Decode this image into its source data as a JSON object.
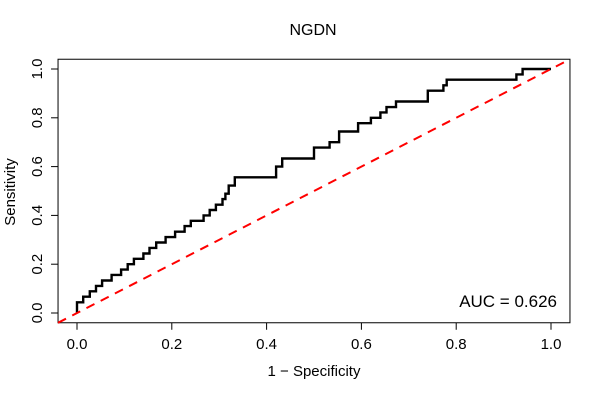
{
  "figure": {
    "background": "#ffffff",
    "box_color": "#000000"
  },
  "chart_data": {
    "type": "line",
    "subtype": "roc-step-curve",
    "title": "NGDN",
    "xlabel": "1 − Specificity",
    "ylabel": "Sensitivity",
    "xlim": [
      0,
      1
    ],
    "ylim": [
      0,
      1
    ],
    "x_ticks": [
      0.0,
      0.2,
      0.4,
      0.6,
      0.8,
      1.0
    ],
    "y_ticks": [
      0.0,
      0.2,
      0.4,
      0.6,
      0.8,
      1.0
    ],
    "grid": false,
    "legend": "none",
    "annotation": "AUC = 0.626",
    "auc": 0.626,
    "series": [
      {
        "name": "roc-curve",
        "color": "#000000",
        "style": "solid",
        "width": 2.4,
        "step": true,
        "points": [
          [
            0.0,
            0.0
          ],
          [
            0.0,
            0.044
          ],
          [
            0.013,
            0.044
          ],
          [
            0.013,
            0.067
          ],
          [
            0.027,
            0.067
          ],
          [
            0.027,
            0.089
          ],
          [
            0.04,
            0.089
          ],
          [
            0.04,
            0.111
          ],
          [
            0.053,
            0.111
          ],
          [
            0.053,
            0.133
          ],
          [
            0.073,
            0.133
          ],
          [
            0.073,
            0.156
          ],
          [
            0.093,
            0.156
          ],
          [
            0.093,
            0.178
          ],
          [
            0.107,
            0.178
          ],
          [
            0.107,
            0.2
          ],
          [
            0.12,
            0.2
          ],
          [
            0.12,
            0.222
          ],
          [
            0.14,
            0.222
          ],
          [
            0.14,
            0.244
          ],
          [
            0.153,
            0.244
          ],
          [
            0.153,
            0.267
          ],
          [
            0.167,
            0.267
          ],
          [
            0.167,
            0.289
          ],
          [
            0.187,
            0.289
          ],
          [
            0.187,
            0.311
          ],
          [
            0.207,
            0.311
          ],
          [
            0.207,
            0.333
          ],
          [
            0.227,
            0.333
          ],
          [
            0.227,
            0.356
          ],
          [
            0.24,
            0.356
          ],
          [
            0.24,
            0.378
          ],
          [
            0.267,
            0.378
          ],
          [
            0.267,
            0.4
          ],
          [
            0.28,
            0.4
          ],
          [
            0.28,
            0.422
          ],
          [
            0.293,
            0.422
          ],
          [
            0.293,
            0.444
          ],
          [
            0.307,
            0.444
          ],
          [
            0.307,
            0.467
          ],
          [
            0.313,
            0.467
          ],
          [
            0.313,
            0.489
          ],
          [
            0.32,
            0.489
          ],
          [
            0.32,
            0.522
          ],
          [
            0.333,
            0.522
          ],
          [
            0.333,
            0.556
          ],
          [
            0.42,
            0.556
          ],
          [
            0.42,
            0.6
          ],
          [
            0.433,
            0.6
          ],
          [
            0.433,
            0.633
          ],
          [
            0.5,
            0.633
          ],
          [
            0.5,
            0.678
          ],
          [
            0.533,
            0.678
          ],
          [
            0.533,
            0.7
          ],
          [
            0.553,
            0.7
          ],
          [
            0.553,
            0.744
          ],
          [
            0.593,
            0.744
          ],
          [
            0.593,
            0.778
          ],
          [
            0.62,
            0.778
          ],
          [
            0.62,
            0.8
          ],
          [
            0.64,
            0.8
          ],
          [
            0.64,
            0.822
          ],
          [
            0.653,
            0.822
          ],
          [
            0.653,
            0.844
          ],
          [
            0.673,
            0.844
          ],
          [
            0.673,
            0.867
          ],
          [
            0.74,
            0.867
          ],
          [
            0.74,
            0.911
          ],
          [
            0.773,
            0.911
          ],
          [
            0.773,
            0.933
          ],
          [
            0.78,
            0.933
          ],
          [
            0.78,
            0.956
          ],
          [
            0.927,
            0.956
          ],
          [
            0.927,
            0.978
          ],
          [
            0.94,
            0.978
          ],
          [
            0.94,
            1.0
          ],
          [
            1.0,
            1.0
          ]
        ]
      },
      {
        "name": "chance-diagonal",
        "color": "#ff0000",
        "style": "dashed",
        "width": 2,
        "step": false,
        "points": [
          [
            -0.04,
            -0.04
          ],
          [
            1.04,
            1.04
          ]
        ]
      }
    ]
  }
}
